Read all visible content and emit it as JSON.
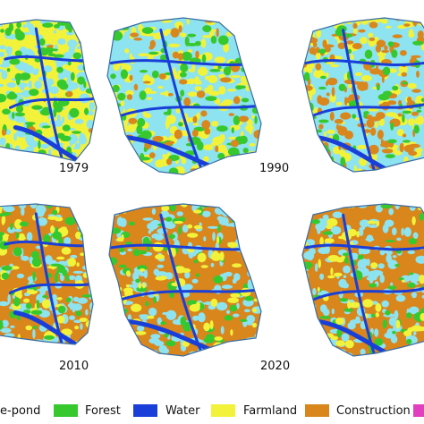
{
  "panels": [
    {
      "year": "1979",
      "dominant": "farmland"
    },
    {
      "year": "1990",
      "dominant": "water"
    },
    {
      "year": "",
      "dominant": "water-mixed"
    },
    {
      "year": "2010",
      "dominant": "construction-mixed"
    },
    {
      "year": "2020",
      "dominant": "construction"
    },
    {
      "year": "",
      "dominant": "construction"
    }
  ],
  "legend": [
    {
      "label": "e-pond",
      "color": "#8ee3f0"
    },
    {
      "label": "Forest",
      "color": "#37c82e"
    },
    {
      "label": "Water",
      "color": "#1a3fd9"
    },
    {
      "label": "Farmland",
      "color": "#f2f23a"
    },
    {
      "label": "Construction",
      "color": "#d9861c"
    },
    {
      "label": "",
      "color": "#e040c0"
    }
  ],
  "colors": {
    "fishpond": "#8ee3f0",
    "forest": "#37c82e",
    "water": "#1a3fd9",
    "farmland": "#f2f23a",
    "construction": "#d9861c",
    "other": "#e040c0"
  }
}
